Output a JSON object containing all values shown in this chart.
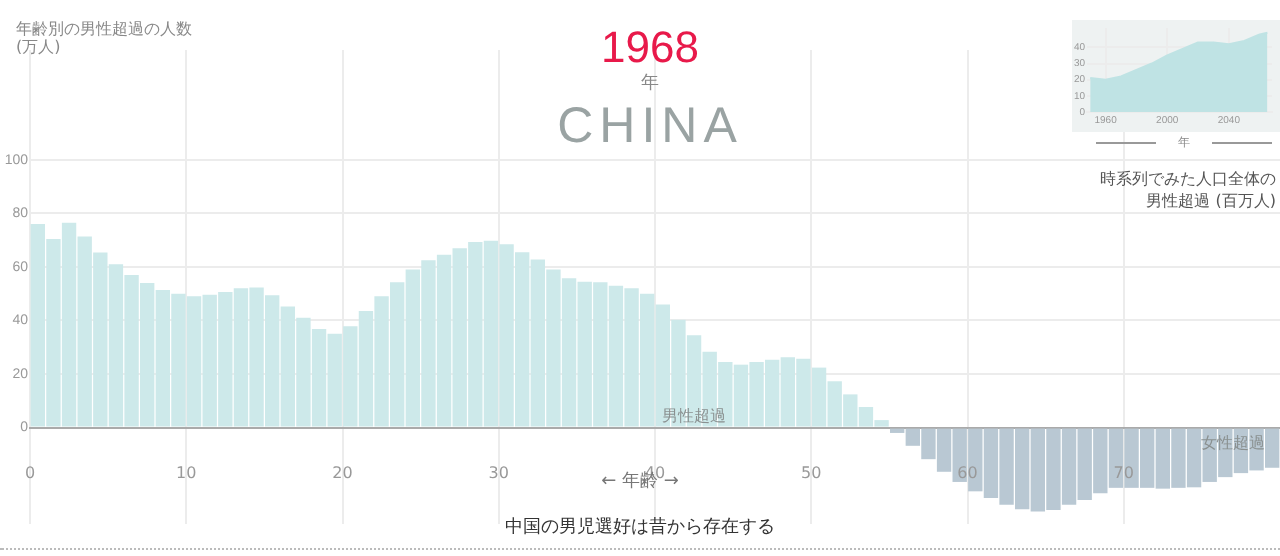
{
  "chart_data": [
    {
      "type": "histogram",
      "title": "1968",
      "subtitle": "CHINA",
      "ylabel": "年齢別の男性超過の人数\n(万人)",
      "xlabel": "← 年齢 →",
      "bins": [
        0,
        1,
        2,
        3,
        4,
        5,
        6,
        7,
        8,
        9,
        10,
        11,
        12,
        13,
        14,
        15,
        16,
        17,
        18,
        19,
        20,
        21,
        22,
        23,
        24,
        25,
        26,
        27,
        28,
        29,
        30,
        31,
        32,
        33,
        34,
        35,
        36,
        37,
        38,
        39,
        40,
        41,
        42,
        43,
        44,
        45,
        46,
        47,
        48,
        49,
        50,
        51,
        52,
        53,
        54,
        55,
        56,
        57,
        58,
        59,
        60,
        61,
        62,
        63,
        64,
        65,
        66,
        67,
        68,
        69,
        70,
        71,
        72,
        73,
        74,
        75,
        76,
        77,
        78,
        79,
        80
      ],
      "values": [
        76,
        70.4,
        76.5,
        71.4,
        65.4,
        61,
        57,
        54,
        51.4,
        50,
        49,
        49.6,
        50.6,
        52,
        52.3,
        49.4,
        45.2,
        41,
        36.8,
        35,
        37.8,
        43.5,
        49,
        54.3,
        59,
        62.5,
        64.5,
        67,
        69.3,
        69.8,
        68.5,
        65.5,
        62.8,
        59,
        55.8,
        54.5,
        54.3,
        53,
        52,
        50,
        46,
        40.3,
        34.5,
        28.3,
        24.5,
        23.5,
        24.5,
        25.3,
        26.3,
        25.7,
        22.4,
        17.3,
        12.4,
        7.7,
        2.8,
        -2,
        -6.8,
        -11.8,
        -16.5,
        -20.3,
        -23.8,
        -26.3,
        -28.8,
        -30.5,
        -31.3,
        -30.8,
        -28.8,
        -27,
        -24.5,
        -22.5,
        -22.5,
        -22.5,
        -22.8,
        -22.5,
        -22.3,
        -20.3,
        -18.5,
        -17,
        -16,
        -15
      ],
      "colors": [
        "#cde9ea",
        "#cde9ea",
        "#cde9ea",
        "#cde9ea",
        "#cde9ea",
        "#cde9ea",
        "#cde9ea",
        "#cde9ea",
        "#cde9ea",
        "#cde9ea",
        "#cde9ea",
        "#cde9ea",
        "#cde9ea",
        "#cde9ea",
        "#cde9ea",
        "#cde9ea",
        "#cde9ea",
        "#cde9ea",
        "#cde9ea",
        "#cde9ea",
        "#cde9ea",
        "#cde9ea",
        "#cde9ea",
        "#cde9ea",
        "#cde9ea",
        "#cde9ea",
        "#cde9ea",
        "#cde9ea",
        "#cde9ea",
        "#cde9ea",
        "#cde9ea",
        "#cde9ea",
        "#cde9ea",
        "#cde9ea",
        "#cde9ea",
        "#cde9ea",
        "#cde9ea",
        "#cde9ea",
        "#cde9ea",
        "#cde9ea",
        "#cde9ea",
        "#cde9ea",
        "#cde9ea",
        "#cde9ea",
        "#cde9ea",
        "#cde9ea",
        "#cde9ea",
        "#cde9ea",
        "#cde9ea",
        "#cde9ea",
        "#cde9ea",
        "#cde9ea",
        "#cde9ea",
        "#cde9ea",
        "#cde9ea",
        "#b9c8d3",
        "#b9c8d3",
        "#b9c8d3",
        "#b9c8d3",
        "#b9c8d3",
        "#b9c8d3",
        "#b9c8d3",
        "#b9c8d3",
        "#b9c8d3",
        "#b9c8d3",
        "#b9c8d3",
        "#b9c8d3",
        "#b9c8d3",
        "#b9c8d3",
        "#b9c8d3",
        "#b9c8d3",
        "#b9c8d3",
        "#b9c8d3",
        "#b9c8d3",
        "#b9c8d3",
        "#b9c8d3",
        "#b9c8d3",
        "#b9c8d3",
        "#b9c8d3",
        "#b9c8d3"
      ],
      "xlim": [
        0,
        80
      ],
      "xticks": [
        0,
        10,
        20,
        30,
        40,
        50,
        60,
        70
      ],
      "ylim": [
        -36,
        141
      ],
      "yticks": [
        0,
        20,
        40,
        60,
        80,
        100
      ],
      "grid": true,
      "legend": false,
      "annotations": [
        "年",
        {
          "text": "男性超過",
          "x": 42.5,
          "y": 4
        },
        {
          "text": "女性超過",
          "x": 77,
          "y": -6
        },
        "中国の男児選好は昔から存在する"
      ]
    },
    {
      "type": "area",
      "title": "時系列でみた人口全体の男性超過 (百万人)",
      "xlabel": "年",
      "x": [
        1950,
        1960,
        1970,
        1980,
        1990,
        2000,
        2010,
        2020,
        2030,
        2040,
        2050,
        2060,
        2065
      ],
      "values": [
        21,
        20,
        22,
        26,
        30,
        35,
        39,
        43,
        43,
        42,
        44,
        48,
        49
      ],
      "color": "#bfe3e4",
      "xlim": [
        1948,
        2068
      ],
      "xticks": [
        1960,
        2000,
        2040
      ],
      "ylim": [
        0,
        52
      ],
      "yticks": [
        0,
        10,
        20,
        30,
        40
      ],
      "grid": true,
      "legend": false
    }
  ]
}
